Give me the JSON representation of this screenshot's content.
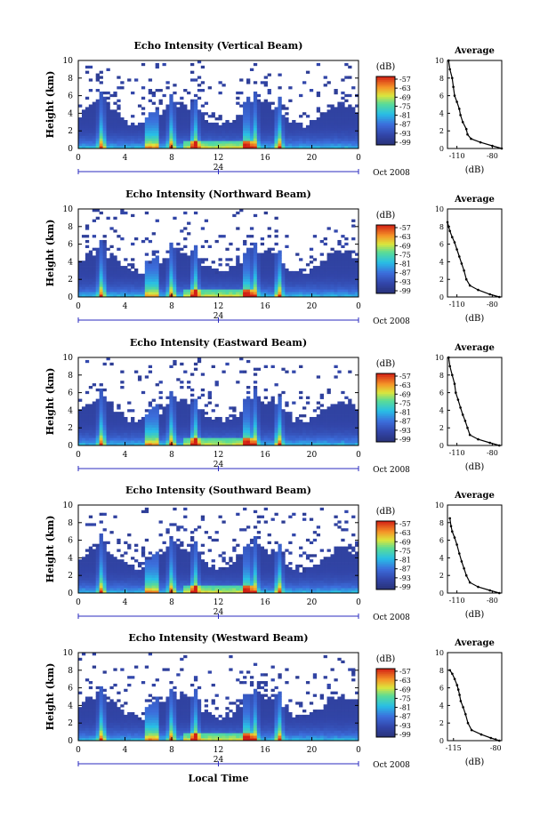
{
  "figure": {
    "date_label": "Oct 2008",
    "bottom_xlabel": "Local Time"
  },
  "chart_data": [
    {
      "type": "heatmap",
      "title": "Echo Intensity (Vertical Beam)",
      "ylabel": "Height (km)",
      "xlim": [
        0,
        24
      ],
      "ylim": [
        0,
        10
      ],
      "x_ticks": [
        "0",
        "4",
        "8",
        "12",
        "16",
        "20",
        "0"
      ],
      "y_ticks": [
        "0",
        "2",
        "4",
        "6",
        "8",
        "10"
      ],
      "date_tick": "24",
      "colorbar": {
        "unit": "(dB)",
        "ticks": [
          "-57",
          "-63",
          "-69",
          "-75",
          "-81",
          "-87",
          "-93",
          "-99"
        ],
        "range": [
          -99,
          -57
        ]
      },
      "spikes": [
        2,
        6,
        6.6,
        8,
        10,
        14.4,
        15.1,
        17.2
      ],
      "profile": {
        "title": "Average",
        "xlabel": "(dB)",
        "xticks": [
          "-110",
          "-80"
        ],
        "xlim": [
          -118,
          -72
        ],
        "points": [
          [
            -72,
            0
          ],
          [
            -80,
            0.3
          ],
          [
            -90,
            0.7
          ],
          [
            -98,
            1.1
          ],
          [
            -101,
            1.6
          ],
          [
            -102,
            2.2
          ],
          [
            -105,
            3
          ],
          [
            -107,
            3.8
          ],
          [
            -108,
            4.5
          ],
          [
            -110,
            5.3
          ],
          [
            -112,
            6
          ],
          [
            -113,
            7
          ],
          [
            -114,
            8
          ],
          [
            -116,
            9
          ],
          [
            -117,
            10
          ]
        ]
      }
    },
    {
      "type": "heatmap",
      "title": "Echo Intensity (Northward Beam)",
      "ylabel": "Height (km)",
      "xlim": [
        0,
        24
      ],
      "ylim": [
        0,
        10
      ],
      "x_ticks": [
        "0",
        "4",
        "8",
        "12",
        "16",
        "20",
        "0"
      ],
      "y_ticks": [
        "0",
        "2",
        "4",
        "6",
        "8",
        "10"
      ],
      "date_tick": "24",
      "colorbar": {
        "unit": "(dB)",
        "ticks": [
          "-57",
          "-63",
          "-69",
          "-75",
          "-81",
          "-87",
          "-93",
          "-99"
        ],
        "range": [
          -99,
          -57
        ]
      },
      "spikes": [
        2,
        6,
        6.6,
        8,
        10,
        14.4,
        15.1,
        17.2
      ],
      "profile": {
        "title": "Average",
        "xlabel": "(dB)",
        "xticks": [
          "-110",
          "-80"
        ],
        "xlim": [
          -118,
          -72
        ],
        "points": [
          [
            -74,
            0
          ],
          [
            -82,
            0.3
          ],
          [
            -92,
            0.8
          ],
          [
            -99,
            1.3
          ],
          [
            -102,
            2
          ],
          [
            -104,
            3
          ],
          [
            -106,
            3.8
          ],
          [
            -108,
            4.6
          ],
          [
            -110,
            5.4
          ],
          [
            -112,
            6.2
          ],
          [
            -114,
            6.8
          ],
          [
            -116,
            7.5
          ],
          [
            -117,
            8
          ],
          [
            -118,
            8.5
          ]
        ]
      }
    },
    {
      "type": "heatmap",
      "title": "Echo Intensity (Eastward Beam)",
      "ylabel": "Height (km)",
      "xlim": [
        0,
        24
      ],
      "ylim": [
        0,
        10
      ],
      "x_ticks": [
        "0",
        "4",
        "8",
        "12",
        "16",
        "20",
        "0"
      ],
      "y_ticks": [
        "0",
        "2",
        "4",
        "6",
        "8",
        "10"
      ],
      "date_tick": "24",
      "colorbar": {
        "unit": "(dB)",
        "ticks": [
          "-57",
          "-63",
          "-69",
          "-75",
          "-81",
          "-87",
          "-93",
          "-99"
        ],
        "range": [
          -99,
          -57
        ]
      },
      "spikes": [
        2,
        6,
        6.6,
        8,
        10,
        14.4,
        15.1,
        17.2
      ],
      "profile": {
        "title": "Average",
        "xlabel": "(dB)",
        "xticks": [
          "-110",
          "-80"
        ],
        "xlim": [
          -118,
          -72
        ],
        "points": [
          [
            -74,
            0
          ],
          [
            -82,
            0.3
          ],
          [
            -92,
            0.7
          ],
          [
            -99,
            1.2
          ],
          [
            -101,
            2
          ],
          [
            -103,
            2.8
          ],
          [
            -105,
            3.5
          ],
          [
            -107,
            4.3
          ],
          [
            -109,
            5.2
          ],
          [
            -111,
            6
          ],
          [
            -112,
            7
          ],
          [
            -114,
            8
          ],
          [
            -116,
            9
          ],
          [
            -117,
            10
          ]
        ]
      }
    },
    {
      "type": "heatmap",
      "title": "Echo Intensity (Southward Beam)",
      "ylabel": "Height (km)",
      "xlim": [
        0,
        24
      ],
      "ylim": [
        0,
        10
      ],
      "x_ticks": [
        "0",
        "4",
        "8",
        "12",
        "16",
        "20",
        "0"
      ],
      "y_ticks": [
        "0",
        "2",
        "4",
        "6",
        "8",
        "10"
      ],
      "date_tick": "24",
      "colorbar": {
        "unit": "(dB)",
        "ticks": [
          "-57",
          "-63",
          "-69",
          "-75",
          "-81",
          "-87",
          "-93",
          "-99"
        ],
        "range": [
          -99,
          -57
        ]
      },
      "spikes": [
        2,
        6,
        6.6,
        8,
        10,
        14.4,
        15.1,
        17.2
      ],
      "profile": {
        "title": "Average",
        "xlabel": "(dB)",
        "xticks": [
          "-110",
          "-80"
        ],
        "xlim": [
          -118,
          -72
        ],
        "points": [
          [
            -74,
            0
          ],
          [
            -82,
            0.3
          ],
          [
            -92,
            0.7
          ],
          [
            -99,
            1.2
          ],
          [
            -102,
            2
          ],
          [
            -104,
            2.8
          ],
          [
            -106,
            3.6
          ],
          [
            -108,
            4.5
          ],
          [
            -110,
            5.5
          ],
          [
            -112,
            6.3
          ],
          [
            -114,
            7
          ],
          [
            -115,
            7.6
          ],
          [
            -116,
            8.5
          ]
        ]
      }
    },
    {
      "type": "heatmap",
      "title": "Echo Intensity (Westward Beam)",
      "ylabel": "Height (km)",
      "xlim": [
        0,
        24
      ],
      "ylim": [
        0,
        10
      ],
      "x_ticks": [
        "0",
        "4",
        "8",
        "12",
        "16",
        "20",
        "0"
      ],
      "y_ticks": [
        "0",
        "2",
        "4",
        "6",
        "8",
        "10"
      ],
      "date_tick": "24",
      "colorbar": {
        "unit": "(dB)",
        "ticks": [
          "-57",
          "-63",
          "-69",
          "-75",
          "-81",
          "-87",
          "-93",
          "-99"
        ],
        "range": [
          -99,
          -57
        ]
      },
      "spikes": [
        2,
        6,
        6.6,
        8,
        10,
        14.4,
        15.1,
        17.2
      ],
      "profile": {
        "title": "Average",
        "xlabel": "(dB)",
        "xticks": [
          "-115",
          "-80"
        ],
        "xlim": [
          -120,
          -75
        ],
        "points": [
          [
            -77,
            0
          ],
          [
            -84,
            0.3
          ],
          [
            -92,
            0.7
          ],
          [
            -100,
            1.2
          ],
          [
            -103,
            2
          ],
          [
            -105,
            3
          ],
          [
            -107,
            3.8
          ],
          [
            -109,
            4.5
          ],
          [
            -110,
            5.2
          ],
          [
            -111,
            5.8
          ],
          [
            -112,
            6.3
          ],
          [
            -114,
            7
          ],
          [
            -116,
            7.6
          ],
          [
            -118,
            8
          ]
        ]
      }
    }
  ]
}
